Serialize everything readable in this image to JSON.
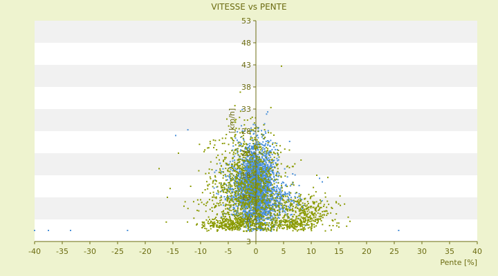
{
  "chart_data": {
    "type": "scatter",
    "title": "VITESSE vs PENTE",
    "xlabel": "Pente [%]",
    "ylabel": "[km/h]",
    "xlim": [
      -40,
      40
    ],
    "ylim": [
      3,
      53
    ],
    "x_ticks": [
      "-40",
      "-35",
      "-30",
      "-25",
      "-20",
      "-15",
      "-10",
      "-5",
      "0",
      "5",
      "10",
      "15",
      "20",
      "25",
      "30",
      "35",
      "40"
    ],
    "y_ticks": [
      "3",
      "8",
      "13",
      "18",
      "23",
      "28",
      "33",
      "38",
      "43",
      "48",
      "53"
    ],
    "grid": "horizontal bands",
    "legend": "none",
    "colors": {
      "background": "#eef3cf",
      "band_light": "#ffffff",
      "band_dark": "#f1f1f1",
      "axis": "#6b6b10",
      "series_a": "#4a90d9",
      "series_b": "#8a9a00"
    },
    "series": [
      {
        "color": "#4a90d9",
        "clusters": [
          {
            "cx": 0,
            "cy": 16,
            "sx": 1.6,
            "sy": 4.8,
            "n": 2200
          },
          {
            "cx": 3,
            "cy": 12,
            "sx": 2.5,
            "sy": 2.6,
            "n": 350
          },
          {
            "cx": -2,
            "cy": 14,
            "sx": 2.4,
            "sy": 3.2,
            "n": 300
          }
        ],
        "points": [
          {
            "x": -40,
            "y": 5.5
          },
          {
            "x": -37.5,
            "y": 5.5
          },
          {
            "x": -33.5,
            "y": 5.5
          },
          {
            "x": -23.2,
            "y": 5.5
          },
          {
            "x": 25.8,
            "y": 5.5
          },
          {
            "x": -14.5,
            "y": 27
          },
          {
            "x": -12.3,
            "y": 28.3
          },
          {
            "x": 11.5,
            "y": 17.3
          },
          {
            "x": 12,
            "y": 16.5
          }
        ]
      },
      {
        "color": "#8a9a00",
        "clusters": [
          {
            "cx": -1.5,
            "cy": 17,
            "sx": 3.2,
            "sy": 6.0,
            "n": 900
          },
          {
            "cx": 8.5,
            "cy": 10,
            "sx": 2.8,
            "sy": 1.8,
            "n": 300
          },
          {
            "cx": -5,
            "cy": 7,
            "sx": 2.4,
            "sy": 0.8,
            "n": 260
          },
          {
            "cx": 6,
            "cy": 7,
            "sx": 3.5,
            "sy": 0.8,
            "n": 260
          },
          {
            "cx": -3,
            "cy": 12,
            "sx": 3.5,
            "sy": 4.0,
            "n": 300
          }
        ],
        "points": [
          {
            "x": -17.5,
            "y": 19.5
          },
          {
            "x": -14,
            "y": 23
          },
          {
            "x": -16,
            "y": 13
          },
          {
            "x": -16.2,
            "y": 7.4
          },
          {
            "x": -15.5,
            "y": 15
          },
          {
            "x": 15.2,
            "y": 13.3
          },
          {
            "x": 14.5,
            "y": 12
          },
          {
            "x": 13.8,
            "y": 10.5
          },
          {
            "x": 13,
            "y": 17.5
          },
          {
            "x": -10.2,
            "y": 25
          },
          {
            "x": -13,
            "y": 11
          },
          {
            "x": 11,
            "y": 18
          }
        ]
      }
    ]
  }
}
